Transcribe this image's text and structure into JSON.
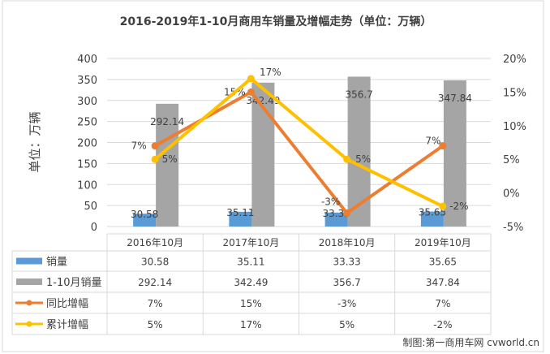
{
  "chart_data": {
    "type": "bar+line",
    "title": "2016-2019年1-10月商用车销量及增幅走势（单位：万辆）",
    "ylabel": "单位：万辆",
    "ylim": [
      0,
      400
    ],
    "yticks": [
      "0",
      "50",
      "100",
      "150",
      "200",
      "250",
      "300",
      "350",
      "400"
    ],
    "y2lim": [
      -5,
      20
    ],
    "y2ticks": [
      "-5%",
      "0%",
      "5%",
      "10%",
      "15%",
      "20%"
    ],
    "grid": true,
    "legend": "data-table",
    "categories": [
      "2016年10月",
      "2017年10月",
      "2018年10月",
      "2019年10月"
    ],
    "series": [
      {
        "name": "销量",
        "type": "bar",
        "axis": "left",
        "color": "#5B9BD5",
        "values": [
          30.58,
          35.11,
          33.33,
          35.65
        ],
        "labels": [
          "30.58",
          "35.11",
          "33.33",
          "35.65"
        ]
      },
      {
        "name": "1-10月销量",
        "type": "bar",
        "axis": "left",
        "color": "#A5A5A5",
        "values": [
          292.14,
          342.49,
          356.7,
          347.84
        ],
        "labels": [
          "292.14",
          "342.49",
          "356.7",
          "347.84"
        ]
      },
      {
        "name": "同比增幅",
        "type": "line",
        "axis": "right",
        "color": "#ED7D31",
        "values": [
          7,
          15,
          -3,
          7
        ],
        "labels": [
          "7%",
          "15%",
          "-3%",
          "7%"
        ]
      },
      {
        "name": "累计增幅",
        "type": "line",
        "axis": "right",
        "color": "#FFC000",
        "values": [
          5,
          17,
          5,
          -2
        ],
        "labels": [
          "5%",
          "17%",
          "5%",
          "-2%"
        ]
      }
    ]
  },
  "footer": "制图:第一商用车网 cvworld.cn"
}
